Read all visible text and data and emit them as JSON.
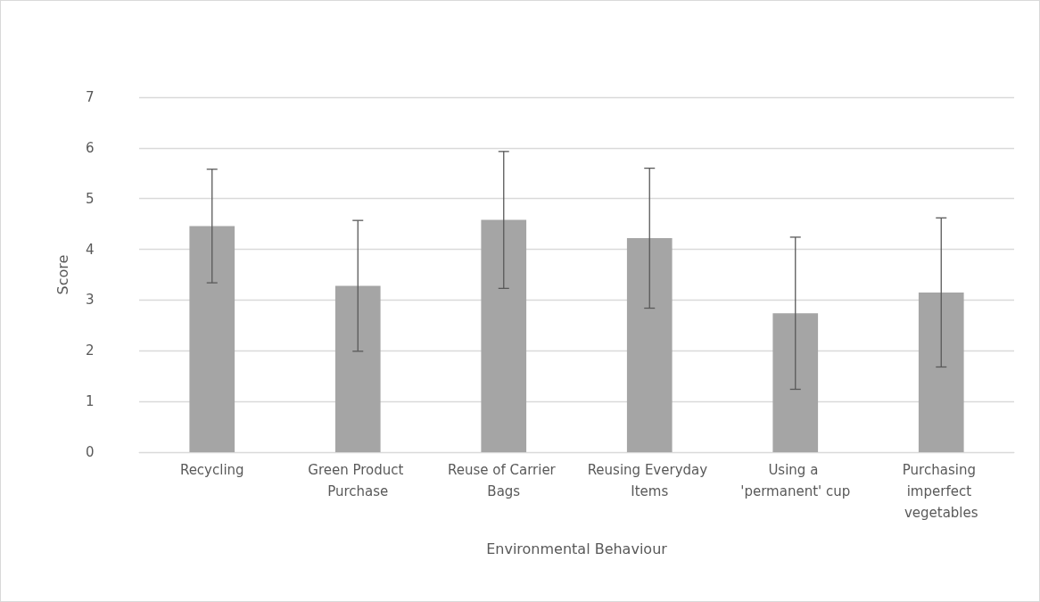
{
  "chart_data": {
    "type": "bar",
    "xlabel": "Environmental Behaviour",
    "ylabel": "Score",
    "categories": [
      "Recycling",
      "Green Product Purchase",
      "Reuse of Carrier Bags",
      "Reusing Everyday Items",
      "Using a 'permanent' cup",
      "Purchasing imperfect vegetables"
    ],
    "values": [
      4.46,
      3.28,
      4.58,
      4.22,
      2.74,
      3.15
    ],
    "errors": [
      1.12,
      1.29,
      1.35,
      1.38,
      1.5,
      1.47
    ],
    "color": "#a5a5a5",
    "ylim": [
      0,
      7
    ],
    "yticks": [
      0,
      1,
      2,
      3,
      4,
      5,
      6,
      7
    ],
    "grid": "y"
  }
}
